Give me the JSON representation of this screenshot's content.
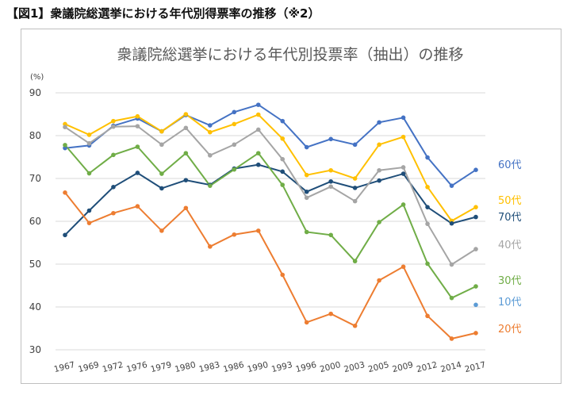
{
  "caption": "【図1】衆議院総選挙における年代別得票率の推移（※2）",
  "chart_data": {
    "type": "line",
    "title": "衆議院総選挙における年代別投票率（抽出）の推移",
    "ylabel": "(%)",
    "xlabel": "",
    "ylim": [
      30,
      90
    ],
    "yticks": [
      "30",
      "40",
      "50",
      "60",
      "70",
      "80",
      "90"
    ],
    "grid": true,
    "categories": [
      "1967",
      "1969",
      "1972",
      "1976",
      "1979",
      "1980",
      "1983",
      "1986",
      "1990",
      "1993",
      "1996",
      "2000",
      "2003",
      "2005",
      "2009",
      "2012",
      "2014",
      "2017"
    ],
    "series": [
      {
        "name": "60代",
        "label": "60代",
        "color": "#4472C4",
        "values": [
          77.1,
          77.7,
          82.3,
          84.0,
          81.0,
          84.8,
          82.4,
          85.5,
          87.2,
          83.4,
          77.3,
          79.2,
          77.9,
          83.1,
          84.2,
          74.9,
          68.3,
          72.0
        ]
      },
      {
        "name": "50代",
        "label": "50代",
        "color": "#FFC000",
        "values": [
          82.7,
          80.2,
          83.4,
          84.5,
          81.0,
          85.0,
          80.8,
          82.7,
          84.9,
          79.3,
          70.8,
          71.9,
          70.0,
          77.9,
          79.7,
          68.0,
          60.1,
          63.3
        ]
      },
      {
        "name": "70代",
        "label": "70代",
        "color": "#1F4E79",
        "values": [
          56.8,
          62.5,
          68.0,
          71.3,
          67.7,
          69.6,
          68.5,
          72.3,
          73.2,
          71.6,
          66.9,
          69.3,
          67.8,
          69.5,
          71.1,
          63.3,
          59.5,
          61.0
        ]
      },
      {
        "name": "40代",
        "label": "40代",
        "color": "#A5A5A5",
        "values": [
          82.0,
          78.2,
          82.1,
          82.2,
          77.9,
          81.8,
          75.4,
          77.9,
          81.4,
          74.5,
          65.5,
          68.1,
          64.7,
          71.9,
          72.6,
          59.4,
          49.9,
          53.5
        ]
      },
      {
        "name": "30代",
        "label": "30代",
        "color": "#70AD47",
        "values": [
          77.8,
          71.2,
          75.5,
          77.4,
          71.1,
          75.9,
          68.3,
          72.1,
          75.9,
          68.5,
          57.5,
          56.8,
          50.7,
          59.8,
          63.9,
          50.1,
          42.1,
          44.8
        ]
      },
      {
        "name": "20代",
        "label": "20代",
        "color": "#ED7D31",
        "values": [
          66.7,
          59.6,
          61.9,
          63.5,
          57.8,
          63.1,
          54.1,
          56.9,
          57.8,
          47.5,
          36.4,
          38.4,
          35.6,
          46.2,
          49.4,
          37.9,
          32.6,
          33.9
        ]
      },
      {
        "name": "10代",
        "label": "10代",
        "color": "#5B9BD5",
        "values": [
          null,
          null,
          null,
          null,
          null,
          null,
          null,
          null,
          null,
          null,
          null,
          null,
          null,
          null,
          null,
          null,
          null,
          40.5
        ]
      }
    ]
  }
}
